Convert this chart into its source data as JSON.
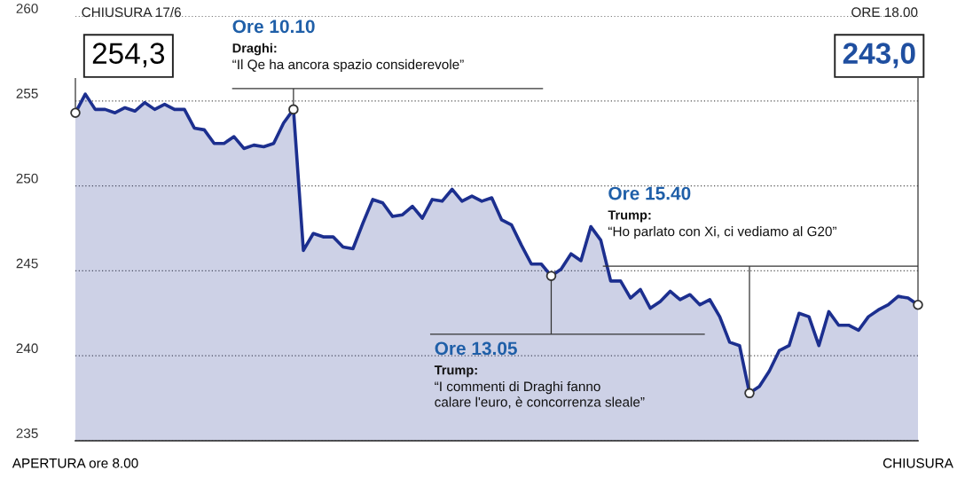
{
  "chart_data": {
    "type": "area",
    "categories": [
      "APERTURA ore 8.00",
      null,
      null,
      null,
      null,
      null,
      null,
      null,
      null,
      null,
      null,
      null,
      null,
      null,
      null,
      null,
      null,
      null,
      null,
      null,
      null,
      null,
      null,
      null,
      null,
      null,
      null,
      null,
      null,
      null,
      null,
      null,
      null,
      null,
      null,
      null,
      null,
      null,
      null,
      null,
      null,
      null,
      null,
      null,
      null,
      null,
      null,
      null,
      null,
      null,
      null,
      null,
      null,
      null,
      null,
      null,
      null,
      null,
      null,
      null,
      null,
      null,
      null,
      null,
      null,
      null,
      null,
      null,
      null,
      null,
      null,
      null,
      null,
      null,
      null,
      null,
      null,
      null,
      null,
      null,
      null,
      null,
      null,
      null,
      null,
      "CHIUSURA"
    ],
    "series": [
      {
        "color": "#1c2f8f",
        "values": [
          254.3,
          255.4,
          254.5,
          254.5,
          254.3,
          254.6,
          254.4,
          254.9,
          254.5,
          254.8,
          254.5,
          254.5,
          253.4,
          253.3,
          252.5,
          252.5,
          252.9,
          252.2,
          252.4,
          252.3,
          252.5,
          253.7,
          254.5,
          246.2,
          247.2,
          247.0,
          247.0,
          246.4,
          246.3,
          247.8,
          249.2,
          249.0,
          248.2,
          248.3,
          248.8,
          248.1,
          249.2,
          249.1,
          249.8,
          249.1,
          249.4,
          249.1,
          249.3,
          248.0,
          247.7,
          246.5,
          245.4,
          245.4,
          244.7,
          245.1,
          246.0,
          245.6,
          247.6,
          246.8,
          244.4,
          244.4,
          243.4,
          243.9,
          242.8,
          243.2,
          243.8,
          243.3,
          243.6,
          243.0,
          243.3,
          242.3,
          240.8,
          240.6,
          237.8,
          238.2,
          239.1,
          240.3,
          240.6,
          242.5,
          242.3,
          240.6,
          242.6,
          241.8,
          241.8,
          241.5,
          242.3,
          242.7,
          243.0,
          243.5,
          243.4,
          243.0
        ]
      }
    ],
    "ylim": [
      235,
      260
    ],
    "yticks": [
      235,
      240,
      245,
      250,
      255,
      260
    ],
    "grid": "y",
    "annotations": [
      "CHIUSURA 17/6\n254,3",
      "Ore 10.10\nDraghi:\n“Il Qe ha ancora spazio considerevole”",
      "Ore 13.05\nTrump:\n“I commenti di Draghi fanno\ncalare l'euro, è concorrenza sleale”",
      "Ore 15.40\nTrump:\n“Ho parlato con Xi, ci vediamo al G20”",
      "ORE 18.00\n243,0"
    ]
  }
}
